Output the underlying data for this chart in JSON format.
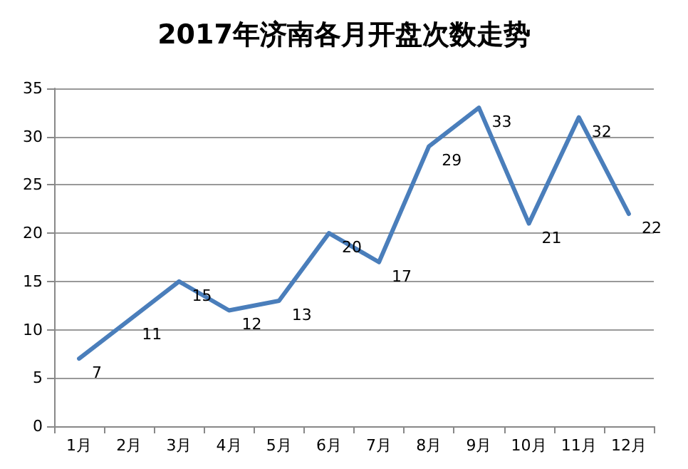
{
  "chart_data": {
    "type": "line",
    "title": "2017年济南各月开盘次数走势",
    "categories": [
      "1月",
      "2月",
      "3月",
      "4月",
      "5月",
      "6月",
      "7月",
      "8月",
      "9月",
      "10月",
      "11月",
      "12月"
    ],
    "series": [
      {
        "color": "#4a7ebb",
        "values": [
          7,
          11,
          15,
          12,
          13,
          20,
          17,
          29,
          33,
          21,
          32,
          22
        ]
      }
    ],
    "ylim": [
      0,
      35
    ],
    "yticks": [
      0,
      5,
      10,
      15,
      20,
      25,
      30,
      35
    ],
    "grid": "y",
    "data_labels": true,
    "marker": "none",
    "line_style": "solid"
  }
}
